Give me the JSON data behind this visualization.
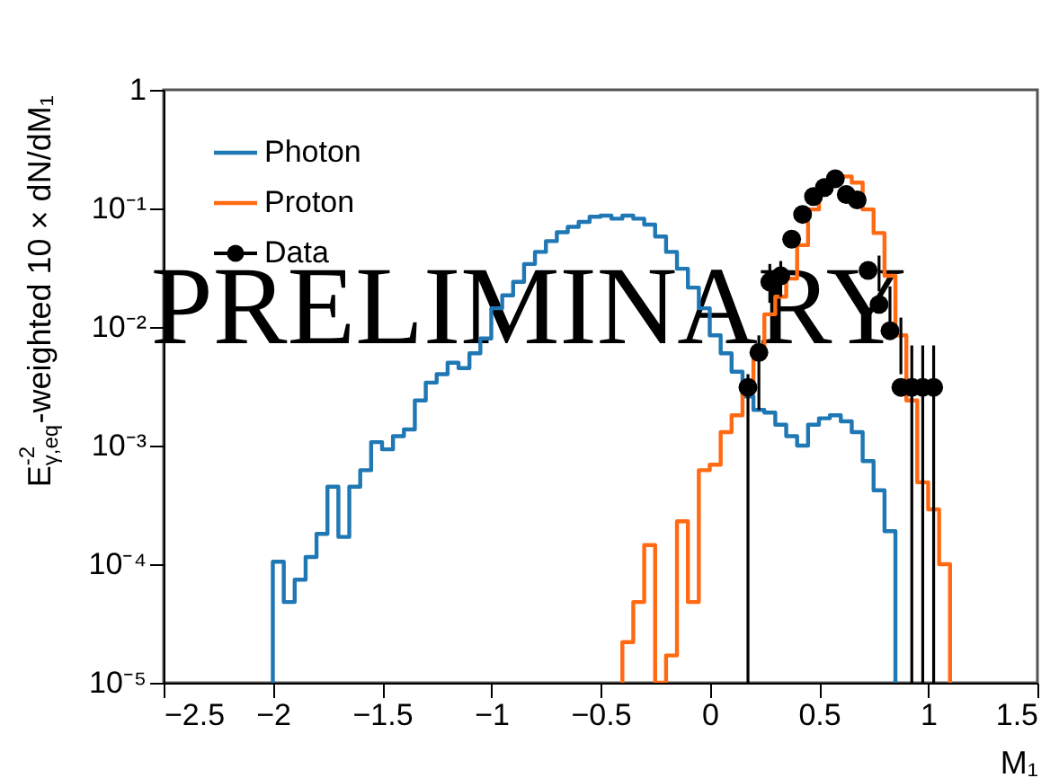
{
  "chart_data": {
    "type": "histogram",
    "xlabel": "M₁",
    "ylabel": "E$^{-2}$$_{γ,eq}$-weighted 10 × dN/dM₁",
    "annotations": [
      "PRELIMINARY"
    ],
    "series": [
      {
        "name": "Photon",
        "color": "#1f77b4",
        "bins": [
          -2.0,
          -1.95,
          -1.9,
          -1.85,
          -1.8,
          -1.75,
          -1.7,
          -1.65,
          -1.6,
          -1.55,
          -1.5,
          -1.45,
          -1.4,
          -1.35,
          -1.3,
          -1.25,
          -1.2,
          -1.15,
          -1.1,
          -1.05,
          -1.0,
          -0.95,
          -0.9,
          -0.85,
          -0.8,
          -0.75,
          -0.7,
          -0.65,
          -0.6,
          -0.55,
          -0.5,
          -0.45,
          -0.4,
          -0.35,
          -0.3,
          -0.25,
          -0.2,
          -0.15,
          -0.1,
          -0.05,
          0.0,
          0.05,
          0.1,
          0.15,
          0.2,
          0.25,
          0.3,
          0.35,
          0.4,
          0.45,
          0.5,
          0.55,
          0.6,
          0.65,
          0.7,
          0.75,
          0.8,
          0.85
        ],
        "values": [
          0.000105,
          4.8e-05,
          7.4e-05,
          0.000115,
          0.00018,
          0.00045,
          0.00017,
          0.00045,
          0.00062,
          0.00107,
          0.00093,
          0.0012,
          0.00137,
          0.0024,
          0.0034,
          0.004,
          0.005,
          0.0045,
          0.006,
          0.008,
          0.0144,
          0.0185,
          0.024,
          0.034,
          0.043,
          0.053,
          0.063,
          0.07,
          0.077,
          0.085,
          0.087,
          0.082,
          0.087,
          0.082,
          0.073,
          0.058,
          0.043,
          0.031,
          0.0215,
          0.0144,
          0.0085,
          0.006,
          0.0042,
          0.0026,
          0.002,
          0.0019,
          0.0015,
          0.0012,
          0.001,
          0.0015,
          0.0017,
          0.0018,
          0.0016,
          0.0013,
          0.00074,
          0.00042,
          0.00019
        ]
      },
      {
        "name": "Proton",
        "color": "#ff6a13",
        "bins": [
          -0.4,
          -0.35,
          -0.3,
          -0.25,
          -0.2,
          -0.15,
          -0.1,
          -0.05,
          0.0,
          0.05,
          0.1,
          0.15,
          0.2,
          0.25,
          0.3,
          0.35,
          0.4,
          0.45,
          0.5,
          0.55,
          0.6,
          0.65,
          0.7,
          0.75,
          0.8,
          0.85,
          0.9,
          0.95,
          1.0,
          1.05,
          1.1
        ],
        "values": [
          2.2e-05,
          4.8e-05,
          0.000145,
          1e-05,
          1.7e-05,
          0.00023,
          4.8e-05,
          0.00062,
          0.00069,
          0.0013,
          0.0018,
          0.003,
          0.0067,
          0.0128,
          0.018,
          0.0256,
          0.049,
          0.098,
          0.138,
          0.165,
          0.186,
          0.165,
          0.098,
          0.062,
          0.027,
          0.0085,
          0.0024,
          0.00049,
          0.00029,
          0.0001
        ]
      },
      {
        "name": "Data",
        "type": "scatter",
        "color": "#000000",
        "marker": "circle",
        "x": [
          0.175,
          0.225,
          0.275,
          0.325,
          0.375,
          0.425,
          0.475,
          0.525,
          0.575,
          0.625,
          0.675,
          0.725,
          0.775,
          0.825,
          0.875,
          0.925,
          0.975,
          1.025
        ],
        "values": [
          0.0031,
          0.0061,
          0.024,
          0.027,
          0.055,
          0.089,
          0.126,
          0.15,
          0.178,
          0.131,
          0.118,
          0.03,
          0.0155,
          0.0093,
          0.0031,
          0.0031,
          0.0031,
          0.0031
        ],
        "errors": [
          [
            1e-05,
            0.004
          ],
          [
            0.002,
            0.0085
          ],
          [
            0.016,
            0.034
          ],
          [
            0.018,
            0.036
          ],
          null,
          null,
          null,
          null,
          null,
          null,
          null,
          null,
          [
            0.02,
            0.04
          ],
          [
            0.01,
            0.022
          ],
          [
            0.004,
            0.012
          ],
          [
            1e-05,
            0.007
          ],
          [
            1e-05,
            0.007
          ],
          [
            1e-05,
            0.007
          ]
        ]
      }
    ],
    "xlim": [
      -2.5,
      1.5
    ],
    "xticks": [
      {
        "value": -2.5,
        "label": "−2.5"
      },
      {
        "value": -2,
        "label": "−2"
      },
      {
        "value": -1.5,
        "label": "−1.5"
      },
      {
        "value": -1,
        "label": "−1"
      },
      {
        "value": -0.5,
        "label": "−0.5"
      },
      0,
      0.5,
      1,
      1.5
    ],
    "ylim": [
      1e-05,
      1
    ],
    "yticks": [
      {
        "value": 1e-05,
        "label": "10⁻⁵"
      },
      {
        "value": 0.0001,
        "label": "10⁻⁴"
      },
      {
        "value": 0.001,
        "label": "10⁻³"
      },
      {
        "value": 0.01,
        "label": "10⁻²"
      },
      {
        "value": 0.1,
        "label": "10⁻¹"
      },
      1
    ],
    "log": "y",
    "grid": false,
    "legend": "top left"
  }
}
